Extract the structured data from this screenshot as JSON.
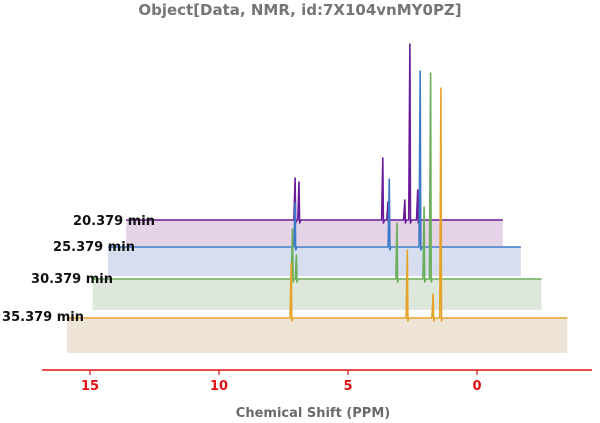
{
  "chart_data": {
    "type": "line",
    "title": "Object[Data, NMR, id:7X104vnMY0PZ]",
    "xlabel": "Chemical Shift  (PPM)",
    "ylabel": "",
    "x_reversed": true,
    "xlim": [
      16.5,
      -4.0
    ],
    "x_ticks": [
      15,
      10,
      5,
      0
    ],
    "x_tick_labels": [
      "15",
      "10",
      "5",
      "0"
    ],
    "axis_color": "#e01010",
    "grid": false,
    "legend": "none",
    "series": [
      {
        "name": "20.379 min",
        "color": "#6a1b9a",
        "fill": "#e4d3e7",
        "x_range": [
          13.6,
          -1.0
        ],
        "peaks": [
          {
            "x": 7.05,
            "height": 42
          },
          {
            "x": 6.9,
            "height": 38
          },
          {
            "x": 3.65,
            "height": 62
          },
          {
            "x": 3.45,
            "height": 18
          },
          {
            "x": 2.8,
            "height": 20
          },
          {
            "x": 2.6,
            "height": 176
          },
          {
            "x": 2.3,
            "height": 30
          }
        ]
      },
      {
        "name": "25.379 min",
        "color": "#3c78c8",
        "fill": "#d6deef",
        "x_range": [
          14.3,
          -1.7
        ],
        "peaks": [
          {
            "x": 7.05,
            "height": 44
          },
          {
            "x": 3.4,
            "height": 68
          },
          {
            "x": 2.2,
            "height": 176
          }
        ]
      },
      {
        "name": "30.379 min",
        "color": "#6cae5a",
        "fill": "#dde7dc",
        "x_range": [
          14.9,
          -2.5
        ],
        "peaks": [
          {
            "x": 7.15,
            "height": 50
          },
          {
            "x": 7.0,
            "height": 24
          },
          {
            "x": 3.1,
            "height": 56
          },
          {
            "x": 2.05,
            "height": 72
          },
          {
            "x": 1.8,
            "height": 206
          }
        ]
      },
      {
        "name": "35.379 min",
        "color": "#e5a32a",
        "fill": "#efe5d6",
        "x_range": [
          15.9,
          -3.5
        ],
        "peaks": [
          {
            "x": 7.2,
            "height": 55
          },
          {
            "x": 2.7,
            "height": 68
          },
          {
            "x": 1.7,
            "height": 24
          },
          {
            "x": 1.4,
            "height": 230
          }
        ]
      }
    ]
  }
}
